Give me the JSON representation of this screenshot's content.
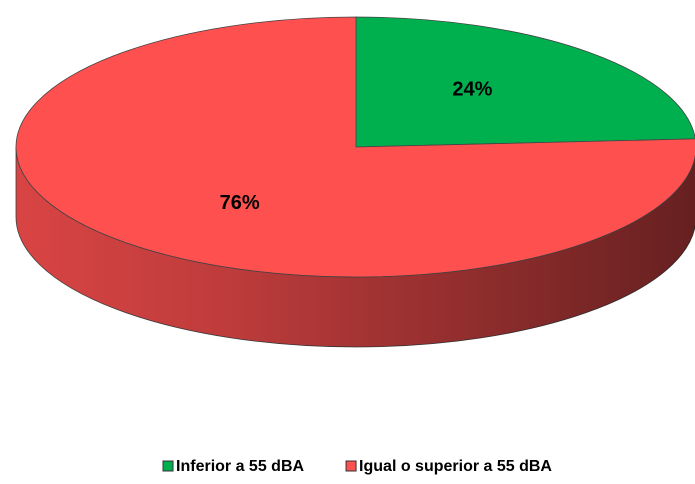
{
  "chart_data": {
    "type": "pie",
    "categories": [
      "Inferior a 55 dBA",
      "Igual o superior a 55 dBA"
    ],
    "values": [
      24,
      76
    ],
    "value_labels": [
      "24%",
      "76%"
    ],
    "colors": [
      "#00b04f",
      "#ff5050"
    ],
    "legend": "bottom"
  }
}
